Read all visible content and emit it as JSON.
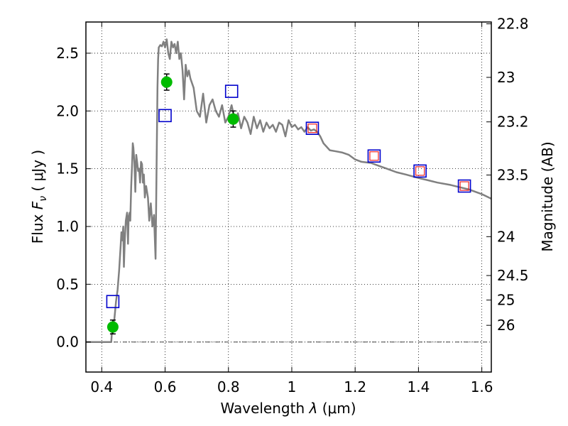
{
  "chart_data": {
    "type": "line",
    "xlabel_prefix": "Wavelength",
    "xlabel_symbol": "λ",
    "xlabel_unit": "(μm)",
    "ylabel_prefix": "Flux",
    "ylabel_symbol": "F",
    "ylabel_sub": "ν",
    "ylabel_unit": "( μJy )",
    "y2label": "Magnitude (AB)",
    "xlim": [
      0.35,
      1.63
    ],
    "ylim": [
      -0.26,
      2.77
    ],
    "xticks": [
      {
        "value": 0.4,
        "label": "0.4"
      },
      {
        "value": 0.6,
        "label": "0.6"
      },
      {
        "value": 0.8,
        "label": "0.8"
      },
      {
        "value": 1.0,
        "label": "1"
      },
      {
        "value": 1.2,
        "label": "1.2"
      },
      {
        "value": 1.4,
        "label": "1.4"
      },
      {
        "value": 1.6,
        "label": "1.6"
      }
    ],
    "yticks": [
      {
        "value": 0.0,
        "label": "0.0"
      },
      {
        "value": 0.5,
        "label": "0.5"
      },
      {
        "value": 1.0,
        "label": "1.0"
      },
      {
        "value": 1.5,
        "label": "1.5"
      },
      {
        "value": 2.0,
        "label": "2.0"
      },
      {
        "value": 2.5,
        "label": "2.5"
      }
    ],
    "magnitude_ticks": [
      {
        "mag": 22.8,
        "label": "22.8"
      },
      {
        "mag": 23.0,
        "label": "23"
      },
      {
        "mag": 23.2,
        "label": "23.2"
      },
      {
        "mag": 23.5,
        "label": "23.5"
      },
      {
        "mag": 24.0,
        "label": "24"
      },
      {
        "mag": 24.5,
        "label": "24.5"
      },
      {
        "mag": 25.0,
        "label": "25"
      },
      {
        "mag": 26.0,
        "label": "26"
      }
    ],
    "grid": true,
    "zero_line": true,
    "series": [
      {
        "kind": "model_sed",
        "style": "line",
        "color": "#808080",
        "x": [
          0.35,
          0.43,
          0.432,
          0.44,
          0.445,
          0.45,
          0.455,
          0.46,
          0.462,
          0.465,
          0.468,
          0.47,
          0.473,
          0.476,
          0.48,
          0.483,
          0.485,
          0.488,
          0.49,
          0.493,
          0.496,
          0.498,
          0.5,
          0.503,
          0.506,
          0.509,
          0.512,
          0.515,
          0.518,
          0.521,
          0.524,
          0.527,
          0.53,
          0.533,
          0.536,
          0.54,
          0.543,
          0.546,
          0.55,
          0.555,
          0.56,
          0.565,
          0.57,
          0.573,
          0.576,
          0.578,
          0.58,
          0.585,
          0.59,
          0.595,
          0.6,
          0.605,
          0.61,
          0.615,
          0.62,
          0.625,
          0.63,
          0.635,
          0.64,
          0.645,
          0.65,
          0.655,
          0.66,
          0.665,
          0.67,
          0.675,
          0.68,
          0.69,
          0.7,
          0.71,
          0.72,
          0.73,
          0.74,
          0.75,
          0.76,
          0.77,
          0.78,
          0.79,
          0.8,
          0.81,
          0.82,
          0.83,
          0.84,
          0.85,
          0.86,
          0.87,
          0.88,
          0.89,
          0.9,
          0.91,
          0.92,
          0.93,
          0.94,
          0.95,
          0.96,
          0.97,
          0.98,
          0.99,
          1.0,
          1.01,
          1.02,
          1.03,
          1.04,
          1.05,
          1.06,
          1.07,
          1.08,
          1.09,
          1.1,
          1.12,
          1.14,
          1.16,
          1.18,
          1.2,
          1.22,
          1.25,
          1.28,
          1.3,
          1.33,
          1.36,
          1.4,
          1.43,
          1.46,
          1.5,
          1.53,
          1.56,
          1.6,
          1.63
        ],
        "y": [
          0.0,
          0.0,
          0.08,
          0.2,
          0.35,
          0.45,
          0.62,
          0.85,
          0.95,
          0.88,
          1.0,
          0.65,
          0.9,
          1.05,
          1.12,
          0.85,
          1.08,
          1.12,
          1.05,
          1.35,
          1.55,
          1.72,
          1.68,
          1.55,
          1.3,
          1.62,
          1.55,
          1.48,
          1.5,
          1.38,
          1.56,
          1.54,
          1.38,
          1.45,
          1.25,
          1.35,
          1.3,
          1.25,
          1.05,
          1.2,
          1.0,
          1.1,
          0.72,
          1.5,
          2.2,
          2.45,
          2.55,
          2.57,
          2.56,
          2.6,
          2.55,
          2.62,
          2.5,
          2.45,
          2.6,
          2.55,
          2.58,
          2.5,
          2.6,
          2.45,
          2.5,
          2.35,
          2.1,
          2.4,
          2.3,
          2.35,
          2.28,
          2.2,
          2.0,
          1.95,
          2.15,
          1.9,
          2.05,
          2.1,
          2.0,
          1.95,
          2.05,
          1.9,
          1.95,
          2.05,
          1.92,
          1.98,
          1.85,
          1.95,
          1.9,
          1.8,
          1.95,
          1.85,
          1.92,
          1.82,
          1.9,
          1.85,
          1.88,
          1.82,
          1.9,
          1.88,
          1.78,
          1.92,
          1.86,
          1.88,
          1.84,
          1.86,
          1.82,
          1.86,
          1.83,
          1.84,
          1.82,
          1.78,
          1.72,
          1.66,
          1.65,
          1.64,
          1.62,
          1.58,
          1.56,
          1.55,
          1.52,
          1.5,
          1.47,
          1.45,
          1.42,
          1.4,
          1.38,
          1.36,
          1.34,
          1.32,
          1.28,
          1.24
        ]
      },
      {
        "kind": "photometry",
        "style": "circle_errorbar",
        "color": "#00bb00",
        "x": [
          0.435,
          0.605,
          0.815
        ],
        "y": [
          0.13,
          2.25,
          1.93
        ],
        "yerr": [
          0.06,
          0.07,
          0.07
        ]
      },
      {
        "kind": "model_photometry_blue",
        "style": "open_square",
        "color": "#0000cc",
        "x": [
          0.435,
          0.6,
          0.81,
          1.065,
          1.26,
          1.405,
          1.545
        ],
        "y": [
          0.35,
          1.96,
          2.17,
          1.85,
          1.61,
          1.48,
          1.35
        ]
      },
      {
        "kind": "model_photometry_red",
        "style": "open_square_small",
        "color": "#ee2222",
        "x": [
          1.065,
          1.26,
          1.405,
          1.545
        ],
        "y": [
          1.85,
          1.61,
          1.48,
          1.35
        ]
      }
    ]
  }
}
